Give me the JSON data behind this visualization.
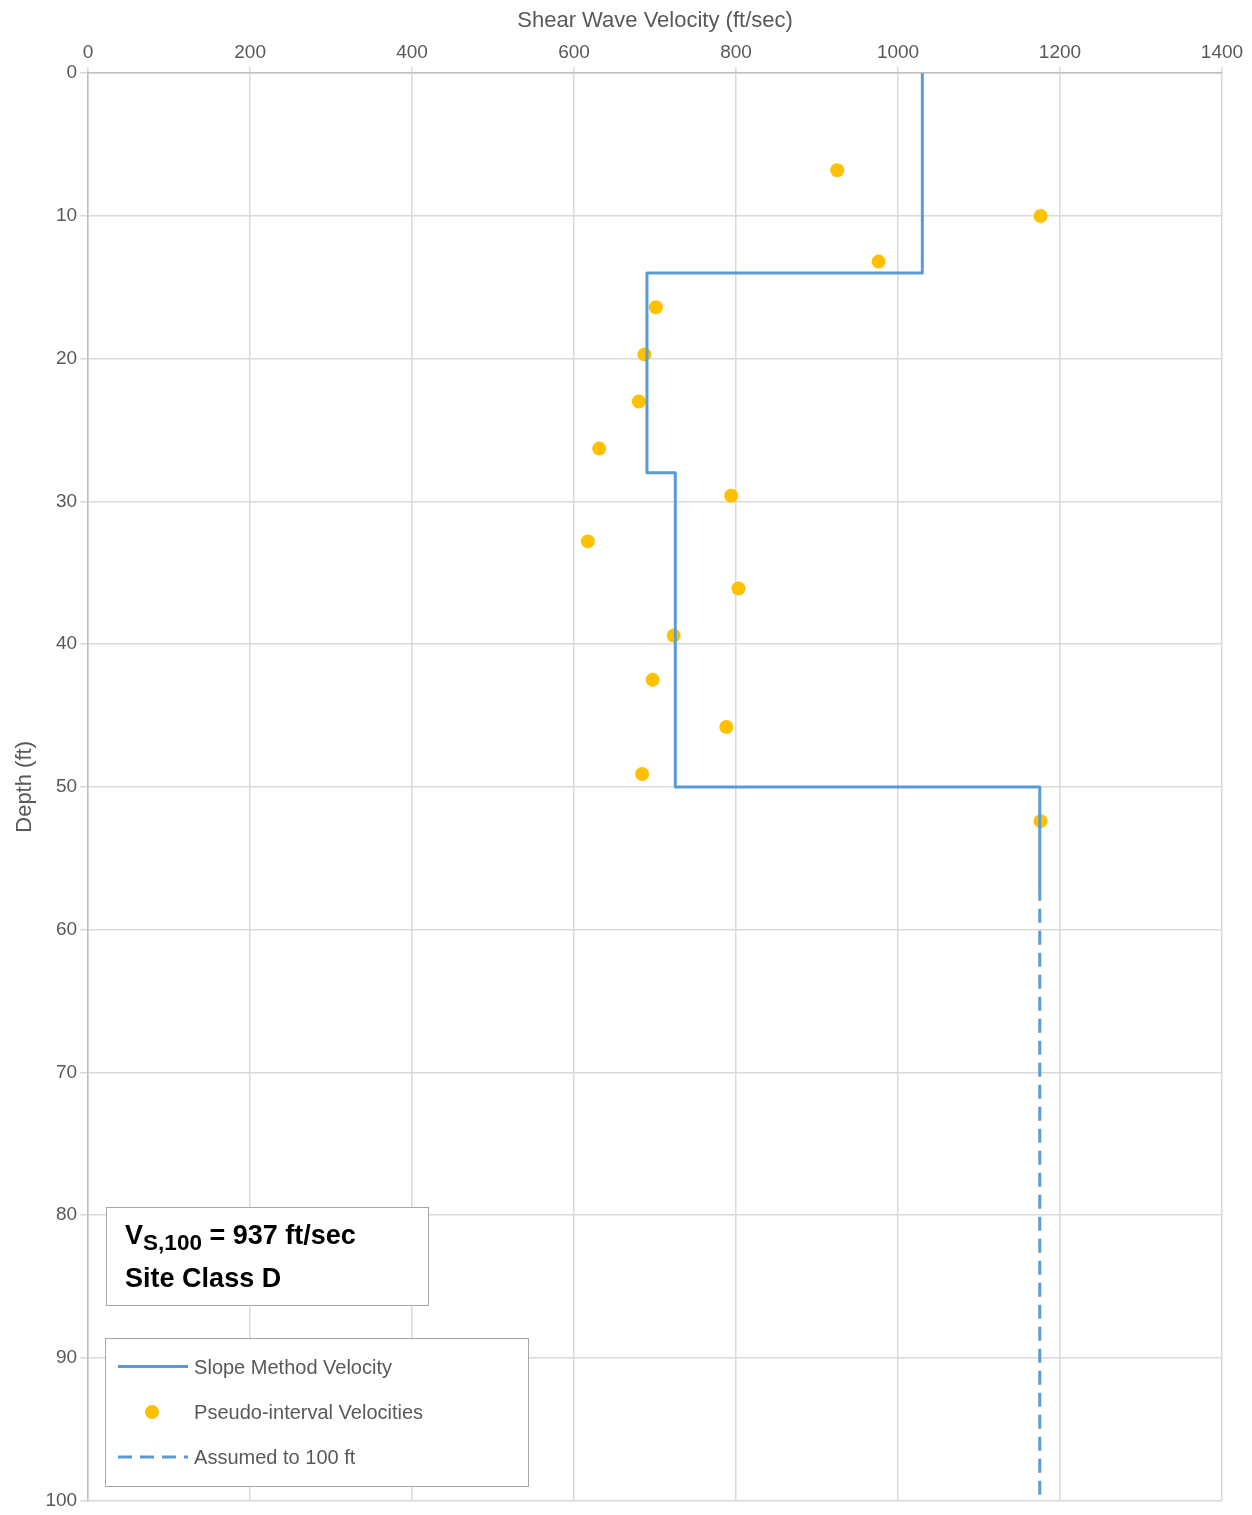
{
  "chart_data": {
    "type": "line",
    "xlabel": "Shear Wave Velocity (ft/sec)",
    "ylabel": "Depth (ft)",
    "xlim": [
      0,
      1400
    ],
    "xticks": [
      0,
      200,
      400,
      600,
      800,
      1000,
      1200,
      1400
    ],
    "ylim": [
      100,
      0
    ],
    "yticks": [
      0,
      10,
      20,
      30,
      40,
      50,
      60,
      70,
      80,
      90,
      100
    ],
    "grid": true,
    "legend": "bottom left",
    "annotations": [
      "V$_{S,100}$ = 937 ft/sec",
      "Site Class D"
    ],
    "series": [
      {
        "name": "Slope Method Velocity",
        "type": "line",
        "color": "#5b9bd5",
        "line_style": "solid",
        "marker": "none",
        "x": [
          1030,
          1030,
          690,
          690,
          725,
          725,
          1175,
          1175
        ],
        "values": [
          0,
          14,
          14,
          28,
          28,
          50,
          50,
          57
        ]
      },
      {
        "name": "Pseudo-interval Velocities",
        "type": "scatter",
        "color": "#ffc000",
        "marker": "circle",
        "x": [
          925,
          1176,
          976,
          701,
          687,
          680,
          631,
          794,
          617,
          803,
          723,
          697,
          788,
          684,
          1176
        ],
        "values": [
          6.8,
          10,
          13.2,
          16.4,
          19.7,
          23,
          26.3,
          29.6,
          32.8,
          36.1,
          39.4,
          42.5,
          45.8,
          49.1,
          52.4
        ]
      },
      {
        "name": "Assumed to 100 ft",
        "type": "line",
        "color": "#5b9bd5",
        "line_style": "dashed",
        "marker": "none",
        "x": [
          1175,
          1175
        ],
        "values": [
          57,
          100
        ]
      }
    ]
  }
}
